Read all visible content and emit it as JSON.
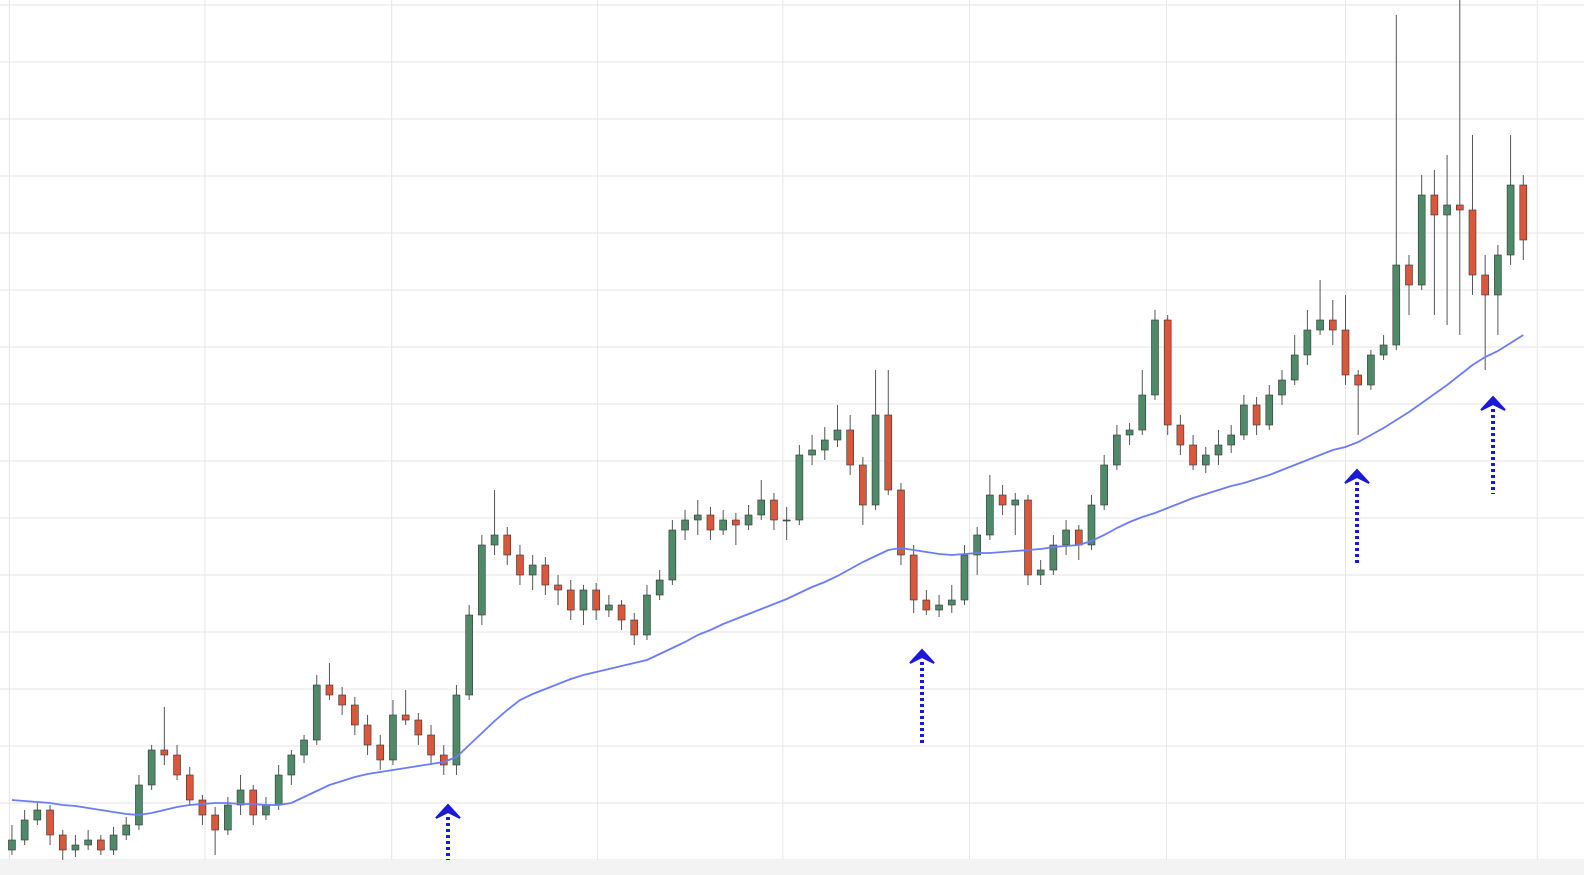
{
  "chart_data": {
    "type": "candlestick",
    "ylim": [
      0,
      875
    ],
    "xlim": [
      -0.94,
      123.78
    ],
    "ygrid": [
      870,
      813,
      756,
      699,
      642,
      585,
      528,
      471,
      414,
      357,
      300,
      243,
      186,
      129,
      72,
      15
    ],
    "xgrid": [
      -0.2,
      15.2,
      29.9,
      46.1,
      60.7,
      75.4,
      90.9,
      105,
      120.1
    ],
    "grid": true,
    "up_color": "#4f8a68",
    "down_color": "#d9573a",
    "ma_color": "#6b7cf5",
    "ohlc": [
      [
        25,
        50,
        20,
        35
      ],
      [
        35,
        65,
        30,
        55
      ],
      [
        55,
        72,
        50,
        65
      ],
      [
        65,
        70,
        30,
        40
      ],
      [
        40,
        45,
        15,
        25
      ],
      [
        25,
        40,
        18,
        30
      ],
      [
        30,
        45,
        25,
        35
      ],
      [
        35,
        40,
        20,
        25
      ],
      [
        25,
        48,
        20,
        40
      ],
      [
        40,
        58,
        35,
        50
      ],
      [
        50,
        100,
        45,
        90
      ],
      [
        90,
        130,
        85,
        125
      ],
      [
        125,
        168,
        110,
        120
      ],
      [
        120,
        130,
        95,
        100
      ],
      [
        100,
        108,
        70,
        75
      ],
      [
        75,
        80,
        50,
        60
      ],
      [
        60,
        68,
        20,
        45
      ],
      [
        45,
        78,
        40,
        70
      ],
      [
        70,
        100,
        60,
        85
      ],
      [
        85,
        90,
        50,
        60
      ],
      [
        60,
        78,
        55,
        70
      ],
      [
        70,
        110,
        65,
        100
      ],
      [
        100,
        125,
        90,
        120
      ],
      [
        120,
        140,
        112,
        135
      ],
      [
        135,
        200,
        130,
        190
      ],
      [
        190,
        212,
        175,
        180
      ],
      [
        180,
        188,
        160,
        170
      ],
      [
        170,
        178,
        140,
        150
      ],
      [
        150,
        160,
        120,
        130
      ],
      [
        130,
        140,
        105,
        115
      ],
      [
        115,
        175,
        110,
        160
      ],
      [
        160,
        185,
        150,
        155
      ],
      [
        155,
        162,
        130,
        140
      ],
      [
        140,
        150,
        110,
        120
      ],
      [
        120,
        130,
        100,
        110
      ],
      [
        110,
        190,
        100,
        180
      ],
      [
        180,
        270,
        175,
        260
      ],
      [
        260,
        340,
        250,
        330
      ],
      [
        330,
        385,
        320,
        340
      ],
      [
        340,
        348,
        310,
        320
      ],
      [
        320,
        330,
        290,
        300
      ],
      [
        300,
        320,
        285,
        310
      ],
      [
        310,
        318,
        280,
        290
      ],
      [
        290,
        300,
        270,
        285
      ],
      [
        285,
        295,
        255,
        265
      ],
      [
        265,
        290,
        250,
        285
      ],
      [
        285,
        292,
        255,
        265
      ],
      [
        265,
        280,
        258,
        270
      ],
      [
        270,
        275,
        245,
        255
      ],
      [
        255,
        262,
        230,
        240
      ],
      [
        240,
        290,
        235,
        280
      ],
      [
        280,
        305,
        275,
        295
      ],
      [
        295,
        355,
        290,
        345
      ],
      [
        345,
        365,
        335,
        355
      ],
      [
        355,
        375,
        340,
        360
      ],
      [
        360,
        368,
        335,
        345
      ],
      [
        345,
        365,
        340,
        355
      ],
      [
        355,
        362,
        330,
        350
      ],
      [
        350,
        370,
        345,
        360
      ],
      [
        360,
        395,
        355,
        375
      ],
      [
        375,
        382,
        345,
        355
      ],
      [
        355,
        368,
        335,
        355
      ],
      [
        355,
        430,
        350,
        420
      ],
      [
        420,
        440,
        410,
        425
      ],
      [
        425,
        448,
        415,
        435
      ],
      [
        435,
        470,
        428,
        445
      ],
      [
        445,
        460,
        400,
        410
      ],
      [
        410,
        418,
        350,
        370
      ],
      [
        370,
        505,
        365,
        460
      ],
      [
        460,
        505,
        380,
        385
      ],
      [
        385,
        392,
        310,
        320
      ],
      [
        320,
        330,
        262,
        275
      ],
      [
        275,
        285,
        260,
        265
      ],
      [
        265,
        280,
        258,
        270
      ],
      [
        270,
        290,
        262,
        275
      ],
      [
        275,
        330,
        270,
        320
      ],
      [
        320,
        348,
        300,
        340
      ],
      [
        340,
        400,
        335,
        380
      ],
      [
        380,
        390,
        360,
        370
      ],
      [
        370,
        382,
        340,
        375
      ],
      [
        375,
        380,
        290,
        300
      ],
      [
        300,
        315,
        290,
        305
      ],
      [
        305,
        340,
        300,
        330
      ],
      [
        330,
        355,
        320,
        345
      ],
      [
        345,
        350,
        315,
        330
      ],
      [
        330,
        380,
        325,
        370
      ],
      [
        370,
        420,
        365,
        410
      ],
      [
        410,
        450,
        405,
        440
      ],
      [
        440,
        452,
        430,
        445
      ],
      [
        445,
        505,
        440,
        480
      ],
      [
        480,
        565,
        475,
        555
      ],
      [
        555,
        560,
        440,
        450
      ],
      [
        450,
        460,
        420,
        430
      ],
      [
        430,
        440,
        405,
        410
      ],
      [
        410,
        428,
        402,
        420
      ],
      [
        420,
        445,
        410,
        430
      ],
      [
        430,
        450,
        422,
        440
      ],
      [
        440,
        480,
        435,
        470
      ],
      [
        470,
        478,
        440,
        450
      ],
      [
        450,
        490,
        445,
        480
      ],
      [
        480,
        505,
        470,
        495
      ],
      [
        495,
        540,
        490,
        520
      ],
      [
        520,
        565,
        510,
        545
      ],
      [
        545,
        595,
        540,
        555
      ],
      [
        555,
        575,
        530,
        545
      ],
      [
        545,
        580,
        490,
        500
      ],
      [
        500,
        505,
        440,
        490
      ],
      [
        490,
        525,
        485,
        520
      ],
      [
        520,
        540,
        515,
        530
      ],
      [
        530,
        860,
        525,
        610
      ],
      [
        610,
        620,
        560,
        590
      ],
      [
        590,
        700,
        585,
        680
      ],
      [
        680,
        705,
        560,
        660
      ],
      [
        660,
        720,
        550,
        670
      ],
      [
        670,
        875,
        540,
        665
      ],
      [
        665,
        740,
        580,
        600
      ],
      [
        600,
        620,
        505,
        580
      ],
      [
        580,
        630,
        540,
        620
      ],
      [
        620,
        740,
        610,
        690
      ],
      [
        690,
        700,
        615,
        635
      ]
    ],
    "ma": [
      75,
      74,
      73,
      72,
      70,
      69,
      67,
      65,
      63,
      61,
      60,
      62,
      65,
      68,
      70,
      71,
      72,
      72,
      71,
      71,
      70,
      70,
      72,
      78,
      84,
      90,
      94,
      98,
      101,
      103,
      105,
      107,
      109,
      111,
      113,
      118,
      130,
      142,
      154,
      165,
      175,
      181,
      186,
      191,
      196,
      200,
      203,
      206,
      209,
      212,
      215,
      221,
      227,
      233,
      240,
      245,
      251,
      256,
      261,
      266,
      271,
      276,
      282,
      288,
      293,
      299,
      306,
      313,
      319,
      325,
      327,
      325,
      323,
      321,
      320,
      321,
      322,
      322,
      323,
      324,
      325,
      326,
      328,
      329,
      330,
      334,
      340,
      347,
      353,
      358,
      362,
      367,
      372,
      377,
      381,
      385,
      389,
      392,
      396,
      400,
      405,
      410,
      415,
      420,
      425,
      428,
      433,
      440,
      447,
      455,
      463,
      472,
      481,
      490,
      500,
      510,
      518,
      524,
      532,
      540
    ]
  }
}
